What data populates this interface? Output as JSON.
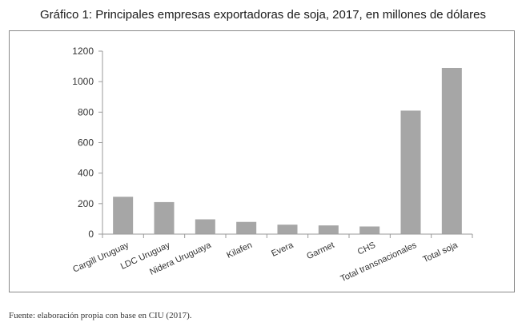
{
  "title": "Gráfico 1: Principales empresas exportadoras de soja, 2017, en millones de dólares",
  "source": "Fuente: elaboración propia con base en CIU (2017).",
  "colors": {
    "bar": "#a6a6a6",
    "axis": "#9a9a9a",
    "frame": "#8a8a8a"
  },
  "chart_data": {
    "type": "bar",
    "categories": [
      "Cargill Uruguay",
      "LDC Uruguay",
      "Nidera Uruguaya",
      "Kilafen",
      "Evera",
      "Garmet",
      "CHS",
      "Total transnacionales",
      "Total soja"
    ],
    "values": [
      245,
      210,
      97,
      80,
      62,
      57,
      50,
      810,
      1090
    ],
    "ylim": [
      0,
      1200
    ],
    "yticks": [
      0,
      200,
      400,
      600,
      800,
      1000,
      1200
    ],
    "grid": false,
    "legend": "none"
  }
}
